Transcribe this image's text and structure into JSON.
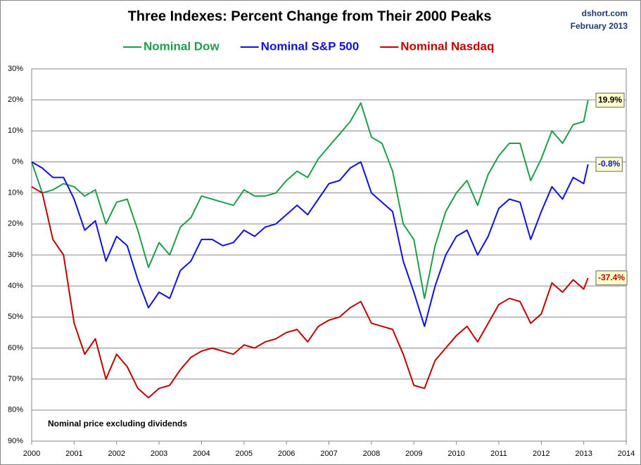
{
  "chart_data": {
    "type": "line",
    "title": "Three Indexes: Percent Change from Their 2000 Peaks",
    "source": "dshort.com",
    "date": "February 2013",
    "note": "Nominal price excluding dividends",
    "legend": "top",
    "grid": true,
    "x": [
      2000,
      2000.25,
      2000.5,
      2000.75,
      2001,
      2001.25,
      2001.5,
      2001.75,
      2002,
      2002.25,
      2002.5,
      2002.75,
      2003,
      2003.25,
      2003.5,
      2003.75,
      2004,
      2004.25,
      2004.5,
      2004.75,
      2005,
      2005.25,
      2005.5,
      2005.75,
      2006,
      2006.25,
      2006.5,
      2006.75,
      2007,
      2007.25,
      2007.5,
      2007.75,
      2008,
      2008.25,
      2008.5,
      2008.75,
      2009,
      2009.25,
      2009.5,
      2009.75,
      2010,
      2010.25,
      2010.5,
      2010.75,
      2011,
      2011.25,
      2011.5,
      2011.75,
      2012,
      2012.25,
      2012.5,
      2012.75,
      2013,
      2013.1
    ],
    "xlim": [
      2000,
      2014
    ],
    "xticks": [
      2000,
      2001,
      2002,
      2003,
      2004,
      2005,
      2006,
      2007,
      2008,
      2009,
      2010,
      2011,
      2012,
      2013,
      2014
    ],
    "ylim": [
      -90,
      30
    ],
    "yticks": [
      {
        "value": 30,
        "label": "30%"
      },
      {
        "value": 20,
        "label": "20%"
      },
      {
        "value": 10,
        "label": "10%"
      },
      {
        "value": 0,
        "label": "0%"
      },
      {
        "value": -10,
        "label": "10%"
      },
      {
        "value": -20,
        "label": "20%"
      },
      {
        "value": -30,
        "label": "30%"
      },
      {
        "value": -40,
        "label": "40%"
      },
      {
        "value": -50,
        "label": "50%"
      },
      {
        "value": -60,
        "label": "60%"
      },
      {
        "value": -70,
        "label": "70%"
      },
      {
        "value": -80,
        "label": "80%"
      },
      {
        "value": -90,
        "label": "90%"
      }
    ],
    "series": [
      {
        "name": "Nominal Dow",
        "color": "#1e9e4a",
        "end_label": "19.9%",
        "values": [
          0,
          -10,
          -9,
          -7,
          -8,
          -11,
          -9,
          -20,
          -13,
          -12,
          -22,
          -34,
          -26,
          -30,
          -21,
          -18,
          -11,
          -12,
          -13,
          -14,
          -9,
          -11,
          -11,
          -10,
          -6,
          -3,
          -5,
          1,
          5,
          9,
          13,
          19,
          8,
          6,
          -3,
          -20,
          -25,
          -44,
          -27,
          -16,
          -10,
          -6,
          -14,
          -4,
          2,
          6,
          6,
          -6,
          1,
          10,
          6,
          12,
          13,
          19.9
        ]
      },
      {
        "name": "Nominal S&P 500",
        "color": "#1010e0",
        "end_label": "-0.8%",
        "values": [
          0,
          -2,
          -5,
          -5,
          -12,
          -22,
          -19,
          -32,
          -24,
          -27,
          -38,
          -47,
          -42,
          -44,
          -35,
          -32,
          -25,
          -25,
          -27,
          -26,
          -22,
          -24,
          -21,
          -20,
          -17,
          -14,
          -17,
          -12,
          -7,
          -6,
          -2,
          0,
          -10,
          -13,
          -16,
          -32,
          -42,
          -53,
          -40,
          -30,
          -24,
          -22,
          -30,
          -24,
          -15,
          -12,
          -13,
          -25,
          -16,
          -8,
          -12,
          -5,
          -7,
          -0.8
        ]
      },
      {
        "name": "Nominal Nasdaq",
        "color": "#c00000",
        "end_label": "-37.4%",
        "values": [
          -8,
          -10,
          -25,
          -30,
          -52,
          -62,
          -57,
          -70,
          -62,
          -66,
          -73,
          -76,
          -73,
          -72,
          -67,
          -63,
          -61,
          -60,
          -61,
          -62,
          -59,
          -60,
          -58,
          -57,
          -55,
          -54,
          -58,
          -53,
          -51,
          -50,
          -47,
          -45,
          -52,
          -53,
          -54,
          -62,
          -72,
          -73,
          -64,
          -60,
          -56,
          -53,
          -58,
          -52,
          -46,
          -44,
          -45,
          -52,
          -49,
          -39,
          -42,
          -38,
          -41,
          -37.4
        ]
      }
    ]
  }
}
